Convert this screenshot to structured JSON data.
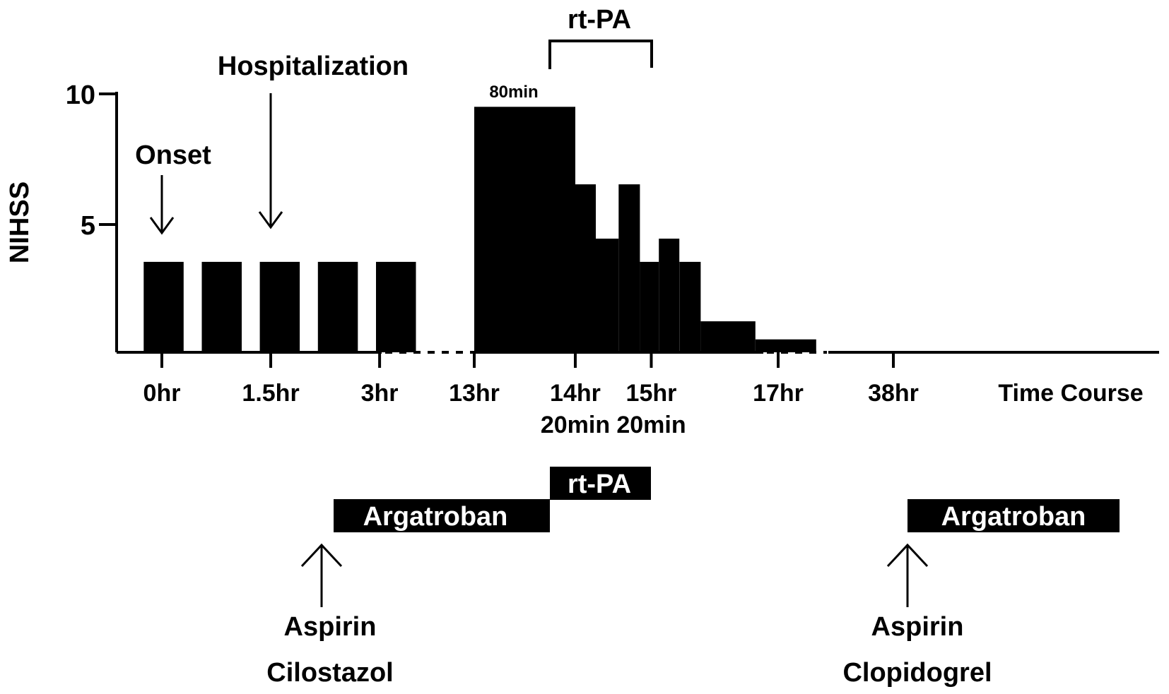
{
  "chart_data": {
    "type": "bar",
    "title": "",
    "ylabel": "NIHSS",
    "xlabel": "Time Course",
    "ylim": [
      0,
      10
    ],
    "yticks": [
      {
        "label": "10",
        "value": 10
      },
      {
        "label": "5",
        "value": 5
      }
    ],
    "xticks": [
      {
        "label": [
          "0hr"
        ],
        "hours": 0
      },
      {
        "label": [
          "1.5hr"
        ],
        "hours": 1.5
      },
      {
        "label": [
          "3hr"
        ],
        "hours": 3
      },
      {
        "label": [
          "13hr"
        ],
        "hours": 13
      },
      {
        "label": [
          "14hr",
          "20min"
        ],
        "hours": 14.33
      },
      {
        "label": [
          "15hr",
          "20min"
        ],
        "hours": 15.33
      },
      {
        "label": [
          "17hr"
        ],
        "hours": 17
      },
      {
        "label": [
          "38hr"
        ],
        "hours": 38
      }
    ],
    "bars": [
      {
        "start_h": -0.25,
        "end_h": 0.3,
        "value": 3.5
      },
      {
        "start_h": 0.55,
        "end_h": 1.1,
        "value": 3.5
      },
      {
        "start_h": 1.35,
        "end_h": 1.9,
        "value": 3.5
      },
      {
        "start_h": 2.15,
        "end_h": 2.7,
        "value": 3.5
      },
      {
        "start_h": 2.95,
        "end_h": 3.5,
        "value": 3.5
      },
      {
        "start_h": 13,
        "end_h": 14.33,
        "value": 9.5
      },
      {
        "start_h": 14.33,
        "end_h": 14.6,
        "value": 6.5
      },
      {
        "start_h": 14.6,
        "end_h": 14.9,
        "value": 4.4
      },
      {
        "start_h": 14.9,
        "end_h": 15.18,
        "value": 6.5
      },
      {
        "start_h": 15.18,
        "end_h": 15.43,
        "value": 3.5
      },
      {
        "start_h": 15.43,
        "end_h": 15.7,
        "value": 4.4
      },
      {
        "start_h": 15.7,
        "end_h": 15.98,
        "value": 3.5
      },
      {
        "start_h": 15.98,
        "end_h": 16.7,
        "value": 1.2
      },
      {
        "start_h": 16.7,
        "end_h": 17.5,
        "value": 0.5
      }
    ],
    "annotations": {
      "onset": "Onset",
      "hospitalization": "Hospitalization",
      "rtpa_bracket": "rt-PA",
      "duration": "80min"
    },
    "treatments": {
      "argatroban_1": "Argatroban",
      "rtpa_box": "rt-PA",
      "argatroban_2": "Argatroban",
      "antiplatelet_1": [
        "Aspirin",
        "Cilostazol"
      ],
      "antiplatelet_2": [
        "Aspirin",
        "Clopidogrel"
      ]
    }
  }
}
